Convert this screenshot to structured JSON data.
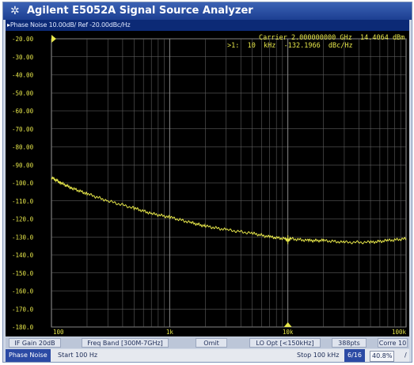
{
  "window": {
    "title": "Agilent E5052A Signal Source Analyzer",
    "logo_icon": "agilent-spark-icon"
  },
  "trace": {
    "header": "Phase Noise 10.00dB/ Ref -20.00dBc/Hz"
  },
  "marker": {
    "carrier_label": "Carrier 2.000000000 GHz",
    "carrier_power": "14.4064 dBm",
    "readout": ">1:  10  kHz  -132.1966  dBc/Hz"
  },
  "axes": {
    "y_ticks": [
      "-20.00",
      "-30.00",
      "-40.00",
      "-50.00",
      "-60.00",
      "-70.00",
      "-80.00",
      "-90.00",
      "-100.0",
      "-110.0",
      "-120.0",
      "-130.0",
      "-140.0",
      "-150.0",
      "-160.0",
      "-170.0",
      "-180.0"
    ],
    "x_ticks": [
      "100",
      "1k",
      "10k",
      "100k"
    ]
  },
  "chart_data": {
    "type": "line",
    "title": "Phase Noise 10.00dB/ Ref -20.00dBc/Hz",
    "xlabel": "",
    "ylabel": "",
    "x_scale": "log",
    "xlim": [
      100,
      100000
    ],
    "ylim": [
      -180,
      -20
    ],
    "grid": true,
    "series": [
      {
        "color": "#e6e64a",
        "x": [
          100,
          120,
          150,
          200,
          300,
          500,
          700,
          1000,
          1500,
          2000,
          3000,
          5000,
          7000,
          9500,
          10000,
          10500,
          15000,
          20000,
          30000,
          50000,
          70000,
          100000
        ],
        "y": [
          -97,
          -100,
          -103,
          -106,
          -110,
          -114,
          -117,
          -119,
          -122,
          -124,
          -126,
          -128,
          -130,
          -131,
          -132.2,
          -131,
          -132,
          -132,
          -133,
          -133,
          -132,
          -131
        ]
      }
    ]
  },
  "status": {
    "if_gain": "IF Gain 20dB",
    "freq_band": "Freq Band [300M-7GHz]",
    "omit": "Omit",
    "lo_opt": "LO Opt [<150kHz]",
    "points": "388pts",
    "corre": "Corre 10"
  },
  "bottom": {
    "mode": "Phase Noise",
    "start": "Start 100 Hz",
    "stop": "Stop 100 kHz",
    "progress_label": "6/16",
    "percent": "40.8%",
    "end_mark": "/"
  }
}
